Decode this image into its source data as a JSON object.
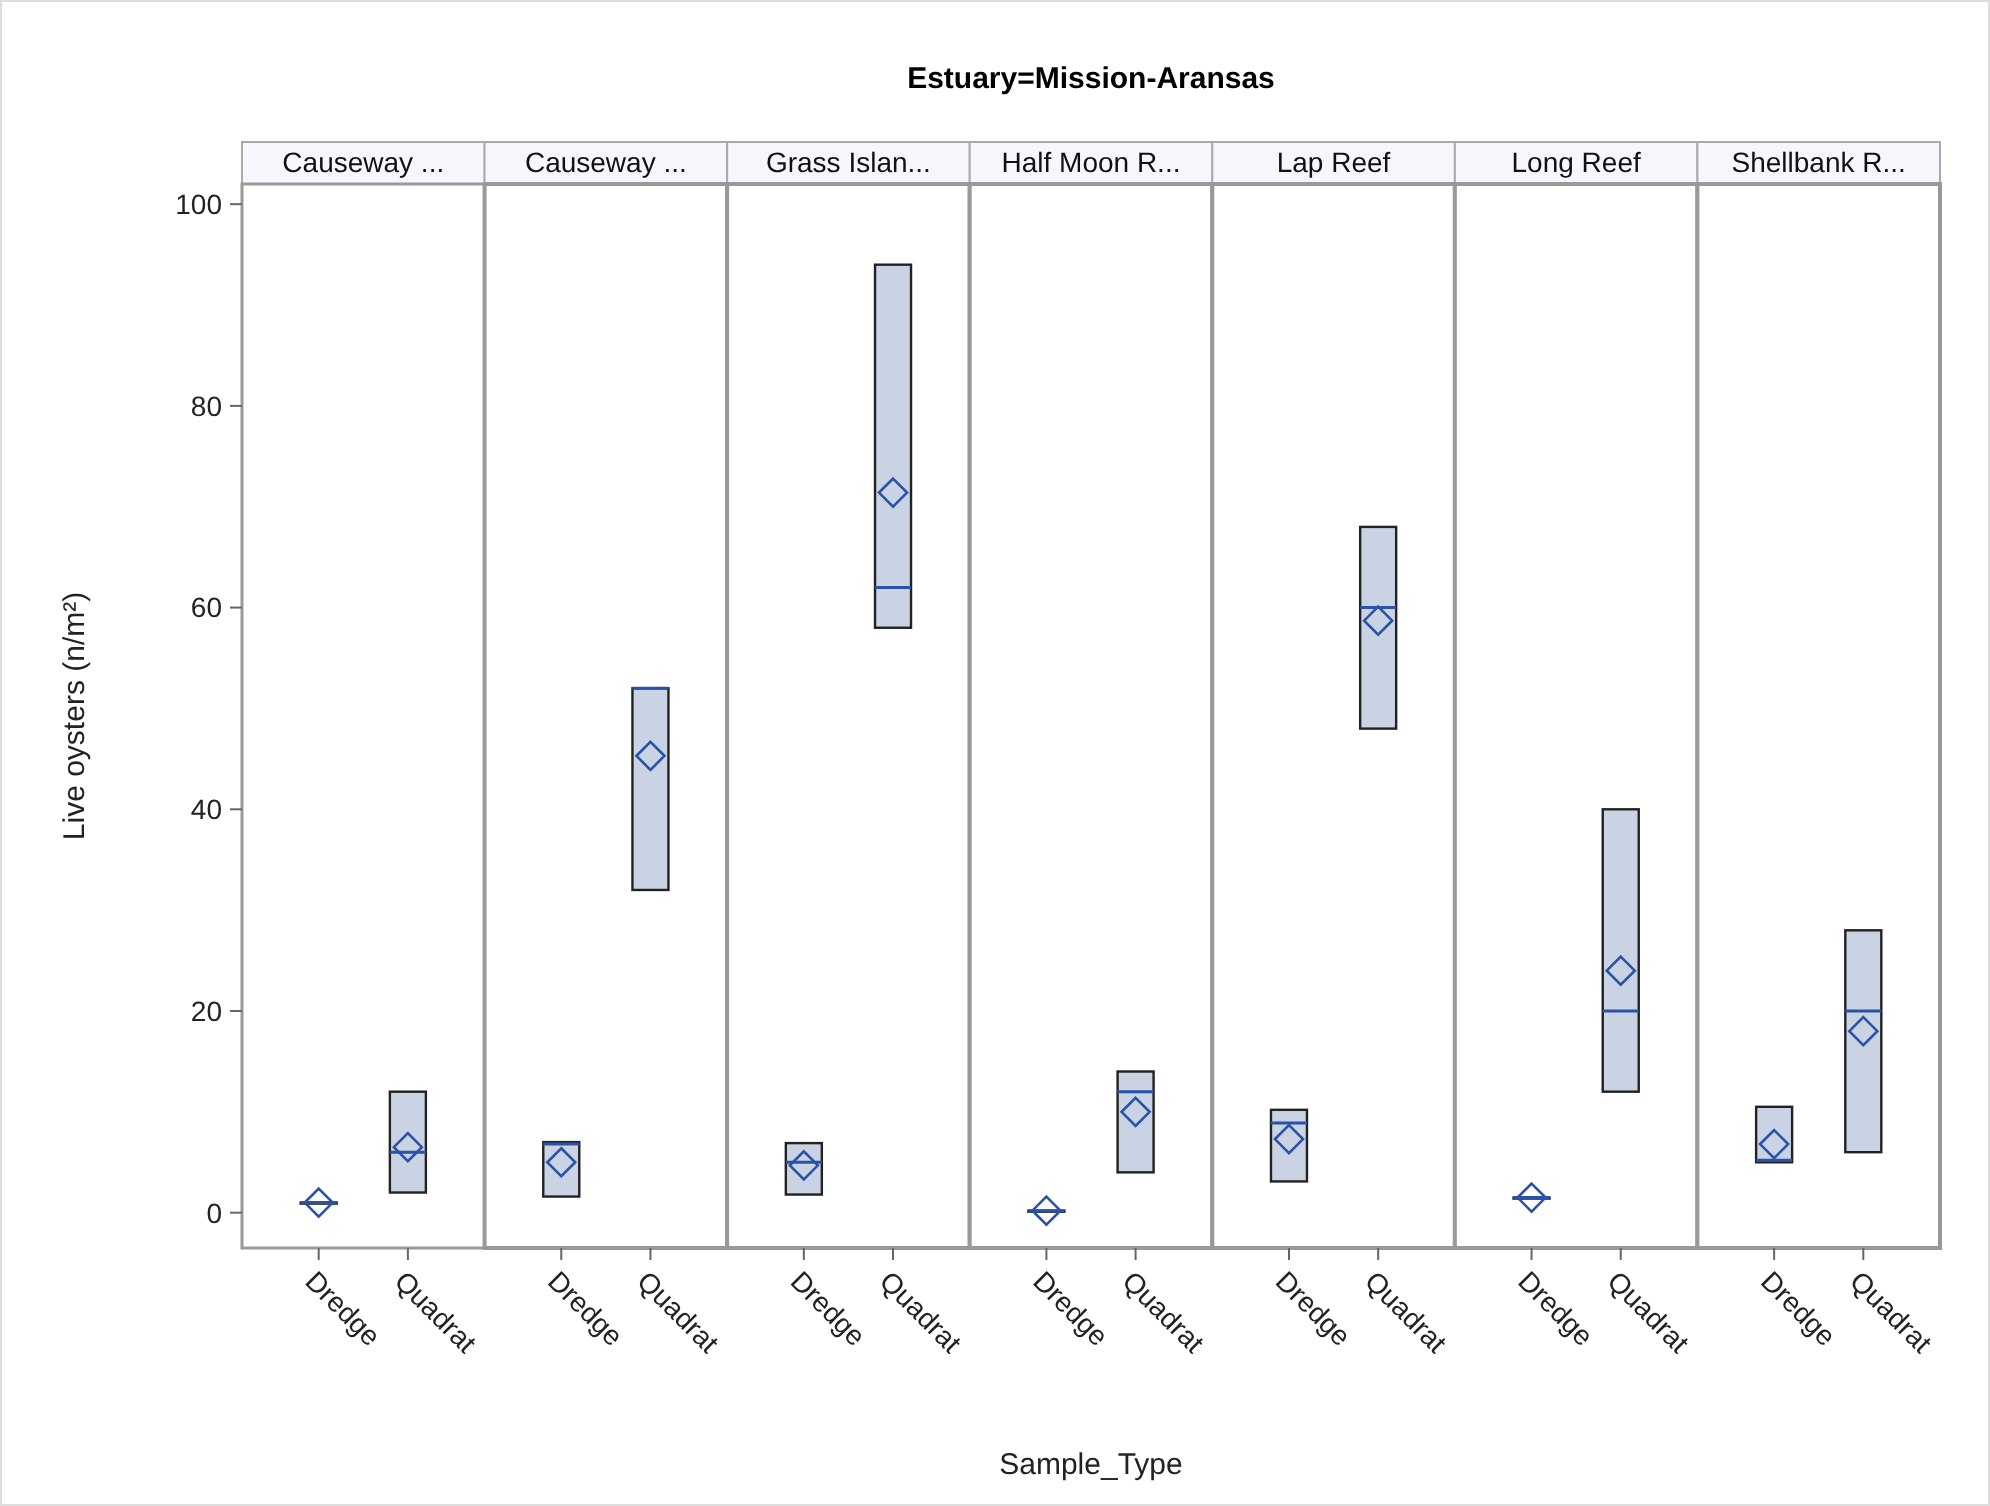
{
  "chart_data": [
    {
      "type": "box",
      "title": "Causeway ...",
      "ylabel": "Live oysters (n/m²)",
      "annotations": [
        "Estuary=Mission-Aransas",
        "Sample_Type"
      ],
      "categories": [
        "Dredge",
        "Quadrat"
      ],
      "ylim": [
        -3.5,
        102
      ],
      "yticks": [
        0,
        20,
        40,
        60,
        80,
        100
      ],
      "boxes": [
        {
          "low": 1,
          "q1": 1,
          "median": 1,
          "q3": 1,
          "high": 1,
          "mean": 1
        },
        {
          "low": 2,
          "q1": 2,
          "median": 6,
          "q3": 12,
          "high": 12,
          "mean": 6.5
        }
      ]
    },
    {
      "type": "box",
      "title": "Causeway ...",
      "tick_labels": "x",
      "categories": [
        "Dredge",
        "Quadrat"
      ],
      "ylim": [
        -3.5,
        102
      ],
      "yticks": [
        0,
        20,
        40,
        60,
        80,
        100
      ],
      "boxes": [
        {
          "low": 1.6,
          "q1": 1.6,
          "median": 6.8,
          "q3": 7,
          "high": 7,
          "mean": 5
        },
        {
          "low": 32,
          "q1": 32,
          "median": 52,
          "q3": 52,
          "high": 52,
          "mean": 45.3
        }
      ]
    },
    {
      "type": "box",
      "title": "Grass Islan...",
      "tick_labels": "x",
      "categories": [
        "Dredge",
        "Quadrat"
      ],
      "ylim": [
        -3.5,
        102
      ],
      "yticks": [
        0,
        20,
        40,
        60,
        80,
        100
      ],
      "boxes": [
        {
          "low": 1.8,
          "q1": 1.8,
          "median": 5,
          "q3": 6.9,
          "high": 6.9,
          "mean": 4.7
        },
        {
          "low": 58,
          "q1": 58,
          "median": 62,
          "q3": 94,
          "high": 94,
          "mean": 71.4
        }
      ]
    },
    {
      "type": "box",
      "title": "Half Moon R...",
      "tick_labels": "x",
      "categories": [
        "Dredge",
        "Quadrat"
      ],
      "ylim": [
        -3.5,
        102
      ],
      "yticks": [
        0,
        20,
        40,
        60,
        80,
        100
      ],
      "boxes": [
        {
          "low": 0.2,
          "q1": 0.2,
          "median": 0.2,
          "q3": 0.2,
          "high": 0.2,
          "mean": 0.2
        },
        {
          "low": 4,
          "q1": 4,
          "median": 12,
          "q3": 14,
          "high": 14,
          "mean": 10
        }
      ]
    },
    {
      "type": "box",
      "title": "Lap Reef",
      "tick_labels": "x",
      "categories": [
        "Dredge",
        "Quadrat"
      ],
      "ylim": [
        -3.5,
        102
      ],
      "yticks": [
        0,
        20,
        40,
        60,
        80,
        100
      ],
      "boxes": [
        {
          "low": 3.1,
          "q1": 3.1,
          "median": 8.9,
          "q3": 10.2,
          "high": 10.2,
          "mean": 7.3
        },
        {
          "low": 48,
          "q1": 48,
          "median": 60,
          "q3": 68,
          "high": 68,
          "mean": 58.7
        }
      ]
    },
    {
      "type": "box",
      "title": "Long Reef",
      "tick_labels": "x",
      "categories": [
        "Dredge",
        "Quadrat"
      ],
      "ylim": [
        -3.5,
        102
      ],
      "yticks": [
        0,
        20,
        40,
        60,
        80,
        100
      ],
      "boxes": [
        {
          "low": 1.5,
          "q1": 1.5,
          "median": 1.5,
          "q3": 1.5,
          "high": 1.5,
          "mean": 1.5
        },
        {
          "low": 12,
          "q1": 12,
          "median": 20,
          "q3": 40,
          "high": 40,
          "mean": 24
        }
      ]
    },
    {
      "type": "box",
      "title": "Shellbank R...",
      "tick_labels": "x",
      "categories": [
        "Dredge",
        "Quadrat"
      ],
      "ylim": [
        -3.5,
        102
      ],
      "yticks": [
        0,
        20,
        40,
        60,
        80,
        100
      ],
      "boxes": [
        {
          "low": 5,
          "q1": 5,
          "median": 5.2,
          "q3": 10.5,
          "high": 10.5,
          "mean": 6.8
        },
        {
          "low": 6,
          "q1": 6,
          "median": 20,
          "q3": 28,
          "high": 28,
          "mean": 18
        }
      ]
    }
  ]
}
